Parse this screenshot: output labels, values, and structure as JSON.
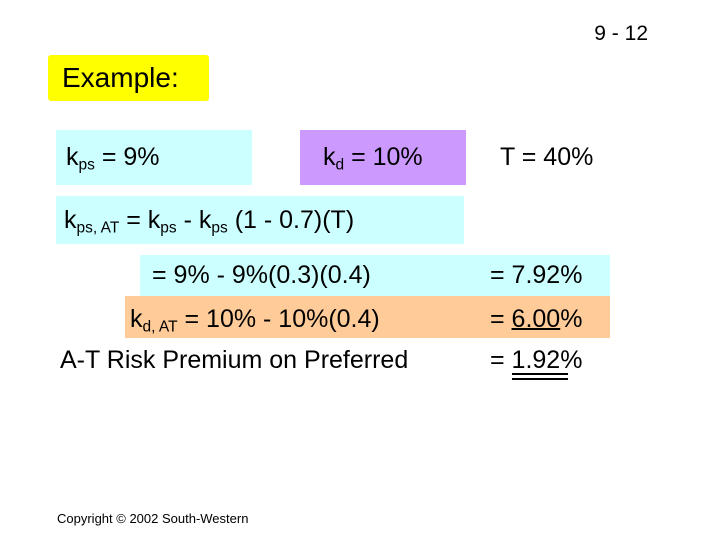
{
  "page_number": "9 - 12",
  "example": {
    "label": "Example:"
  },
  "rates": {
    "kps": {
      "symbol": "k",
      "sub": "ps",
      "text": " =  9%"
    },
    "kd": {
      "symbol": "k",
      "sub": "d",
      "text": " =  10%"
    },
    "tax": {
      "text": "T  =  40%"
    }
  },
  "formula": {
    "lhs_symbol": "k",
    "lhs_sub": "ps, AT",
    "eq": " =  k",
    "term1_sub": "ps",
    "minus": " - k",
    "term2_sub": "ps",
    "rest": " (1 - 0.7)(T)"
  },
  "calculation": {
    "preferred_expr": "=  9% - 9%(0.3)(0.4)",
    "preferred_result": "=  7.92%",
    "debt_symbol": "k",
    "debt_sub": "d, AT",
    "debt_expr": " =  10% - 10%(0.4)",
    "debt_result_eq": "=  ",
    "debt_result_value": "6.00",
    "debt_result_pct": "%",
    "premium_label": "A-T Risk Premium on Preferred",
    "premium_eq": "=  ",
    "premium_value": "1.92",
    "premium_pct": "%"
  },
  "colors": {
    "example_bg": "#ffff00",
    "cyan_bg": "#ccffff",
    "purple_bg": "#cc99ff",
    "orange_bg": "#ffcc99"
  },
  "footer": {
    "copyright": "Copyright © 2002 South-Western"
  }
}
